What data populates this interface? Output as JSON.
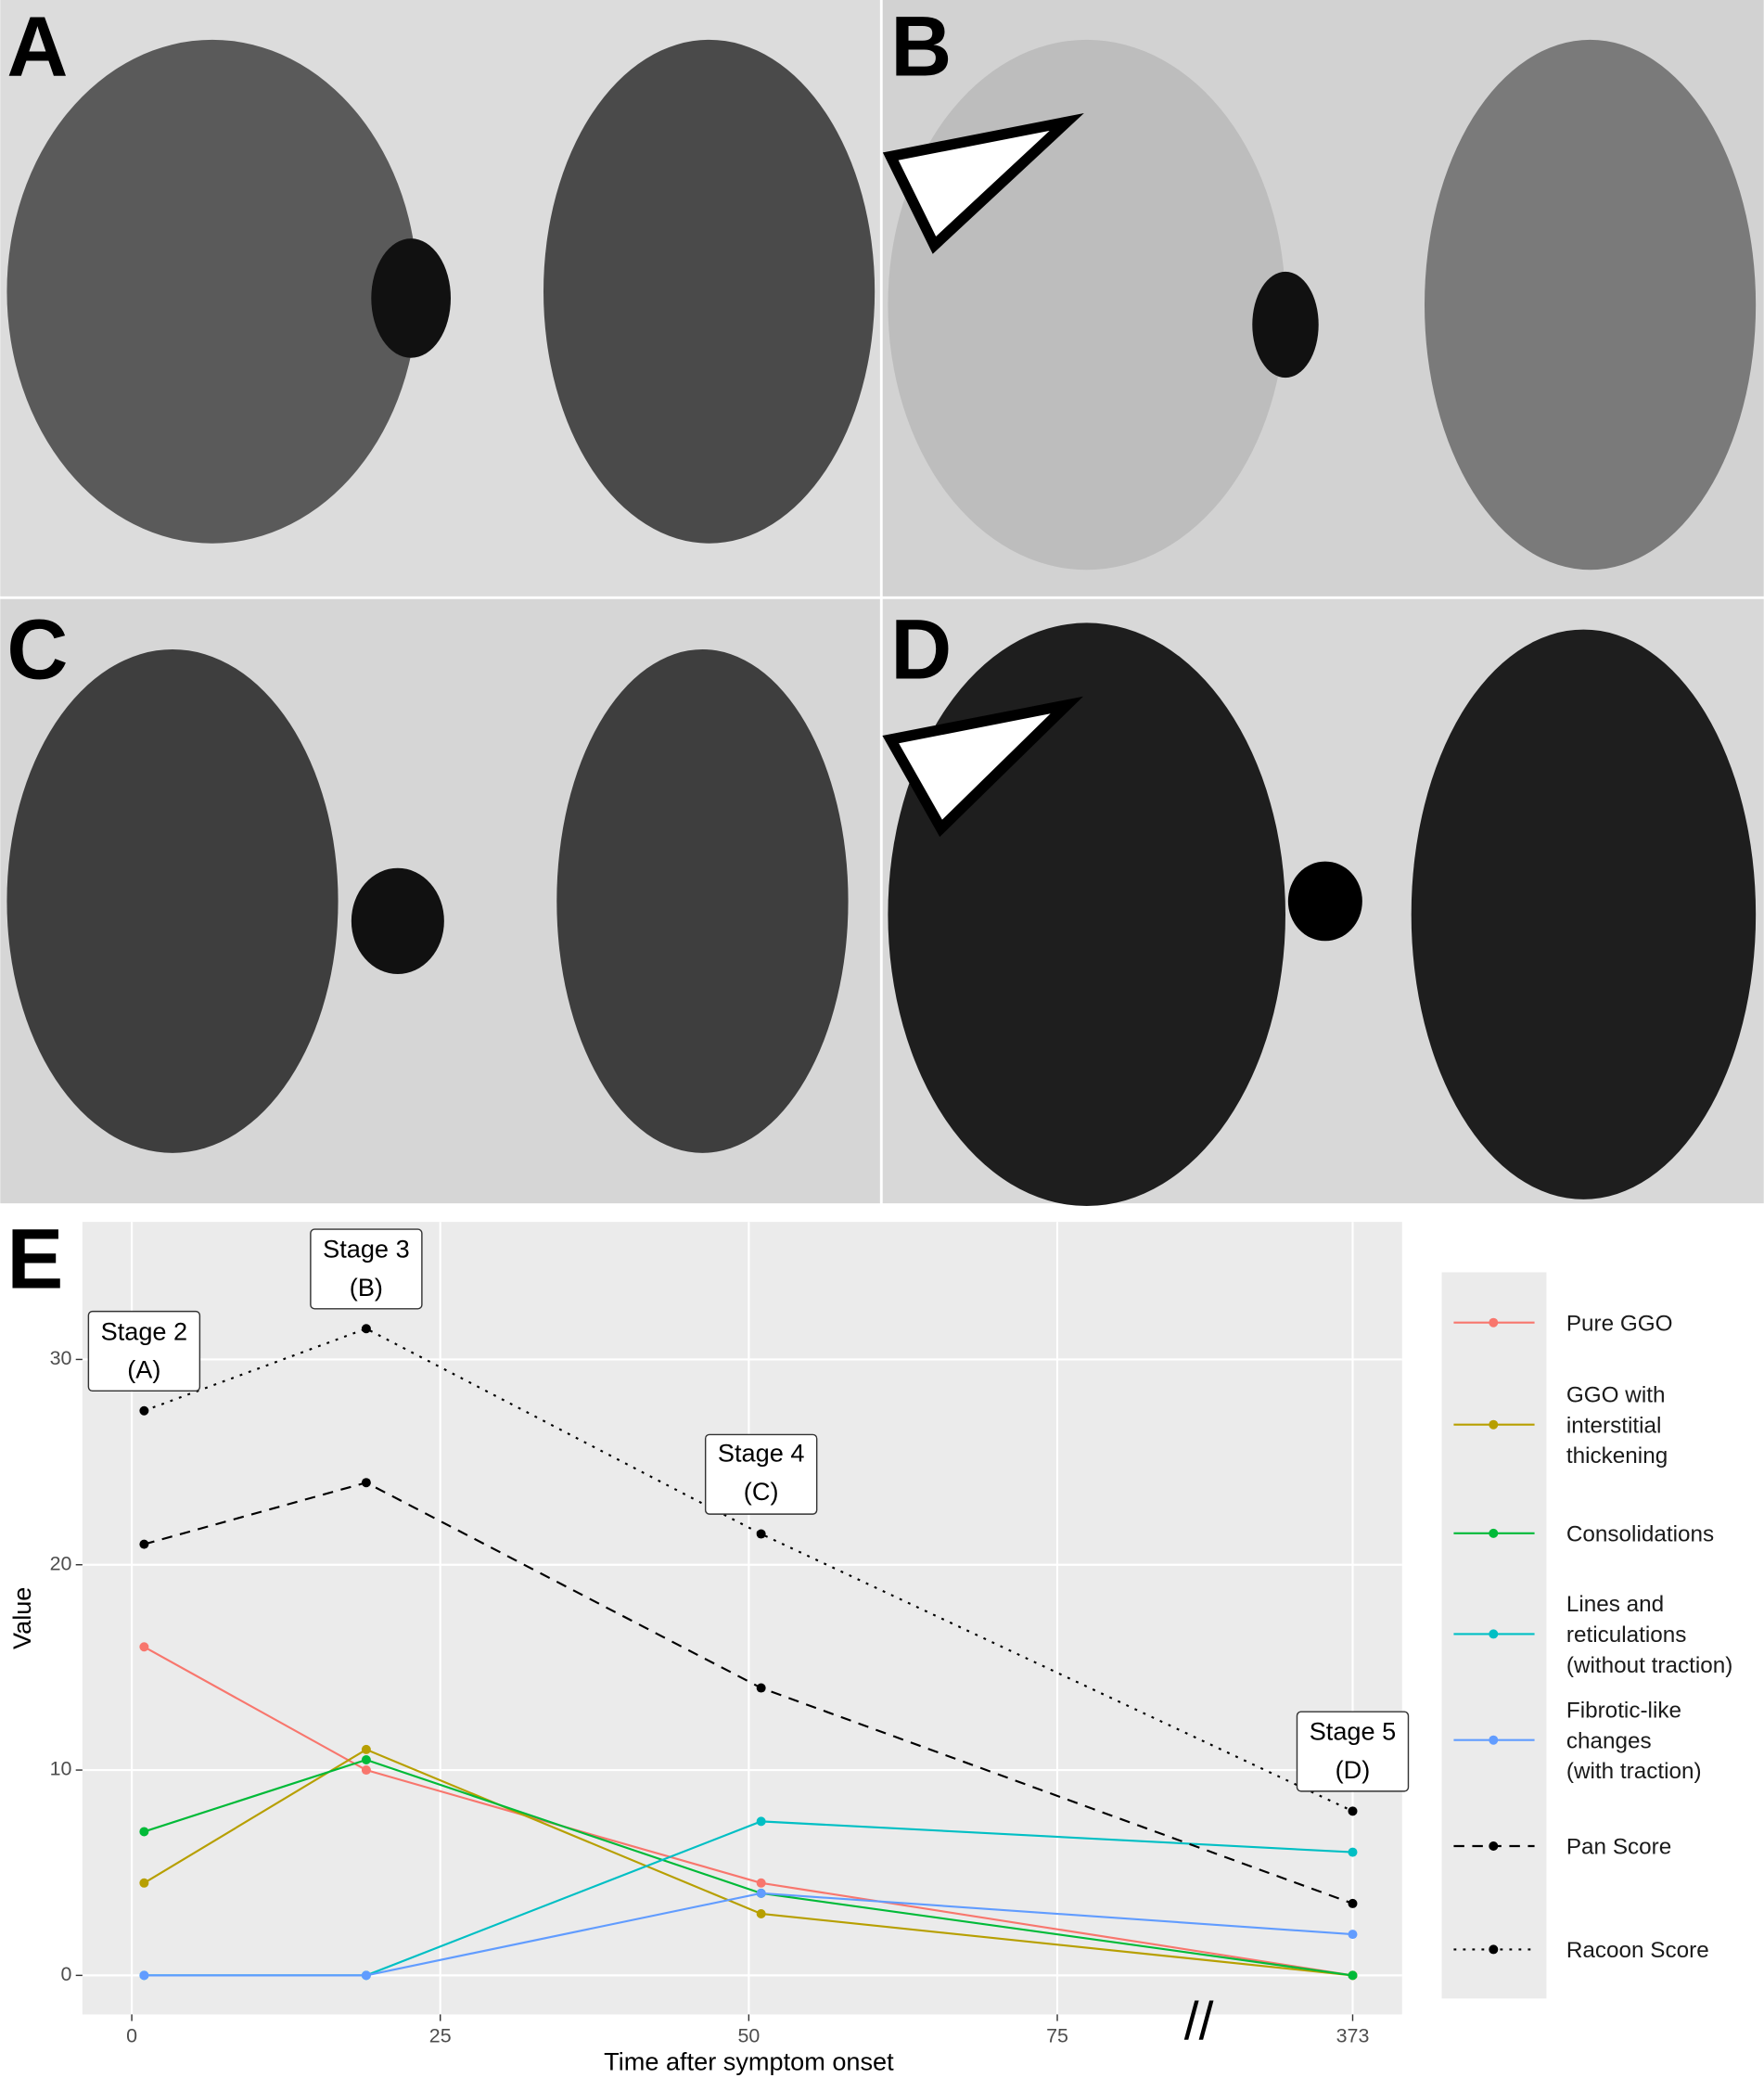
{
  "panels": [
    "A",
    "B",
    "C",
    "D"
  ],
  "chart_data": {
    "type": "line",
    "panel_label": "E",
    "xlabel": "Time after symptom onset",
    "ylabel": "Value",
    "x": [
      1,
      19,
      51,
      373
    ],
    "stage_labels": [
      "Stage 2\n(A)",
      "Stage 3\n(B)",
      "Stage 4\n(C)",
      "Stage 5\n(D)"
    ],
    "series": [
      {
        "name": "Pure GGO",
        "color": "#F8766D",
        "dash": "solid",
        "values": [
          16,
          10,
          4.5,
          0
        ]
      },
      {
        "name": "GGO with\ninterstitial\nthickening",
        "color": "#B79F00",
        "dash": "solid",
        "values": [
          4.5,
          11,
          3,
          0
        ]
      },
      {
        "name": "Consolidations",
        "color": "#00BA38",
        "dash": "solid",
        "values": [
          7,
          10.5,
          4,
          0
        ]
      },
      {
        "name": "Lines and\nreticulations\n(without traction)",
        "color": "#00BFC4",
        "dash": "solid",
        "values": [
          0,
          0,
          7.5,
          6
        ]
      },
      {
        "name": "Fibrotic-like\nchanges\n(with traction)",
        "color": "#619CFF",
        "dash": "solid",
        "values": [
          0,
          0,
          4,
          2
        ]
      },
      {
        "name": "Pan Score",
        "color": "#000000",
        "dash": "dashed",
        "values": [
          21,
          24,
          14,
          3.5
        ]
      },
      {
        "name": "Racoon Score",
        "color": "#000000",
        "dash": "dotted",
        "values": [
          27.5,
          31.5,
          21.5,
          8
        ]
      }
    ],
    "xlim": [
      -4,
      377
    ],
    "x_break": {
      "from": 76,
      "to": 371,
      "label": "//"
    },
    "xticks": [
      0,
      25,
      50,
      75,
      373
    ],
    "ylim": [
      -1.9,
      36.7
    ],
    "yticks": [
      0,
      10,
      20,
      30
    ],
    "grid": true
  }
}
